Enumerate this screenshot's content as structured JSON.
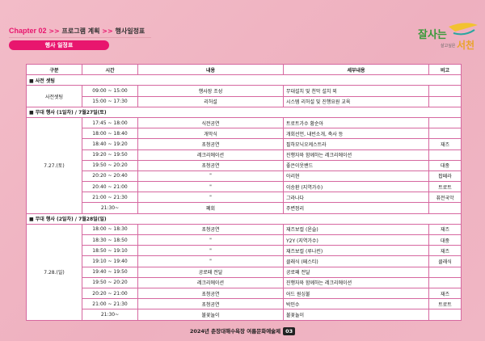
{
  "breadcrumb": {
    "chapter": "Chapter 02",
    "sep": ">>",
    "level1": "프로그램 계획",
    "level2": "행사일정표"
  },
  "section_title": "행사 일정표",
  "logo_text": "잘사는 군민 살고싶은 서천",
  "table": {
    "headers": [
      "구분",
      "시간",
      "내용",
      "세부내용",
      "비고"
    ],
    "sections": [
      {
        "title": "■ 사전 셋팅",
        "group": "사전셋팅",
        "rows": [
          [
            "09:00 ~ 15:00",
            "행사장 조성",
            "무대설치 및 천막 설치 외",
            ""
          ],
          [
            "15:00 ~ 17:30",
            "리허설",
            "시스템 리허설 및 진행요원 교육",
            ""
          ]
        ]
      },
      {
        "title": "■ 무대 행사 (1일차) / 7월27일(토)",
        "group": "7.27.(토)",
        "rows": [
          [
            "17:45 ~ 18:00",
            "식전공연",
            "트로트가수 황순아",
            ""
          ],
          [
            "18:00 ~ 18:40",
            "개막식",
            "개회선언, 내빈소개, 축사 등",
            ""
          ],
          [
            "18:40 ~ 19:20",
            "초청공연",
            "필하모닉오케스트라",
            "재즈"
          ],
          [
            "19:20 ~ 19:50",
            "레크리에이션",
            "진행자와 함께하는 레크리에이션",
            ""
          ],
          [
            "19:50 ~ 20:20",
            "초청공연",
            "좋은이웃밴드",
            "대중"
          ],
          [
            "20:20 ~ 20:40",
            "\"",
            "아리현",
            "팝페라"
          ],
          [
            "20:40 ~ 21:00",
            "\"",
            "이승환 (지역가수)",
            "트로트"
          ],
          [
            "21:00 ~ 21:30",
            "\"",
            "그라나다",
            "퓨전국악"
          ],
          [
            "21:30~",
            "폐회",
            "주변정리",
            ""
          ]
        ]
      },
      {
        "title": "■ 무대 행사 (2일차) / 7월28일(일)",
        "group": "7.28.(일)",
        "rows": [
          [
            "18:00 ~ 18:30",
            "초청공연",
            "재즈보컬 (윤슬)",
            "재즈"
          ],
          [
            "18:30 ~ 18:50",
            "\"",
            "Y2Y (지역가수)",
            "대중"
          ],
          [
            "18:50 ~ 19:10",
            "\"",
            "재즈보컬 (루나린)",
            "재즈"
          ],
          [
            "19:10 ~ 19:40",
            "\"",
            "클래식 (페스티)",
            "클래식"
          ],
          [
            "19:40 ~ 19:50",
            "공로패 전달",
            "공로패 전달",
            ""
          ],
          [
            "19:50 ~ 20:20",
            "레크리에이션",
            "진행자와 함께하는 레크리에이션",
            ""
          ],
          [
            "20:20 ~ 21:00",
            "초청공연",
            "어드 원싱불",
            "재즈"
          ],
          [
            "21:00 ~ 21:30",
            "초청공연",
            "박민수",
            "트로트"
          ],
          [
            "21:30~",
            "불꽃놀이",
            "불꽃놀이",
            ""
          ]
        ]
      }
    ]
  },
  "footer": {
    "text": "2024년 춘장대해수욕장 여름문화예술제",
    "page": "03"
  },
  "colors": {
    "accent": "#e8166e",
    "border": "#d668a0",
    "background": "#f0b6c4"
  }
}
